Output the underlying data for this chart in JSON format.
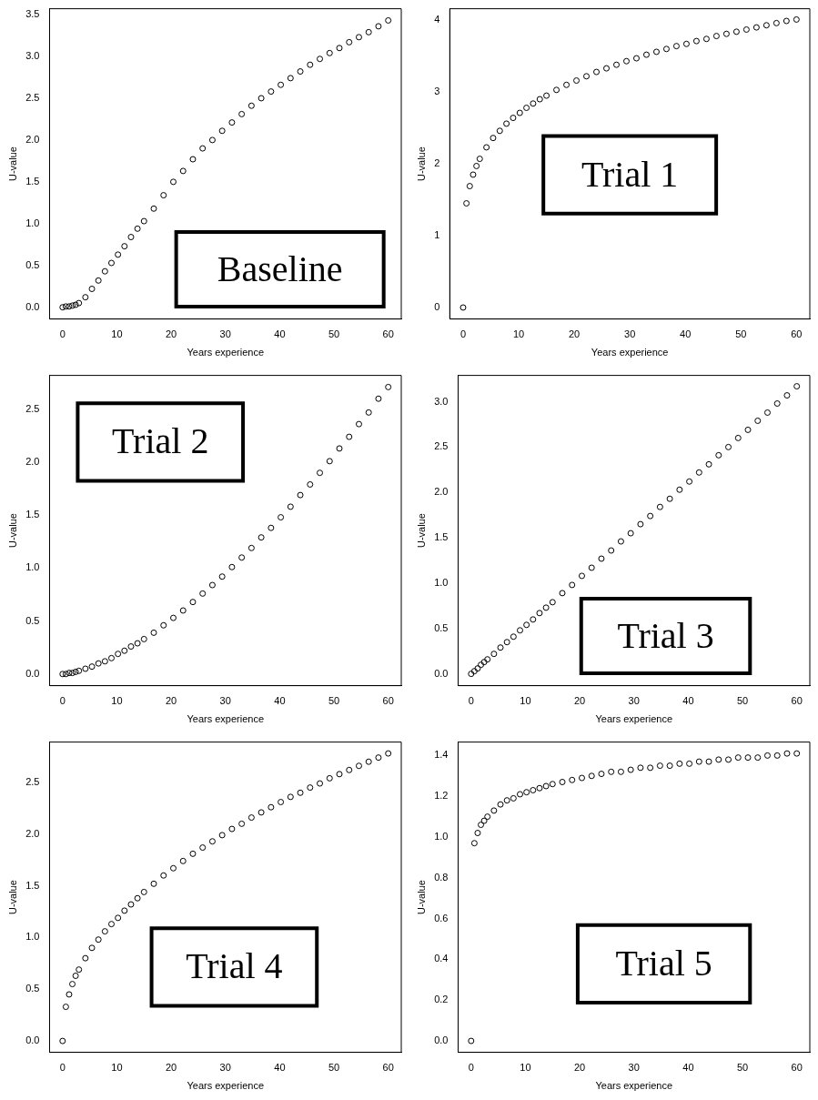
{
  "chart_data": [
    {
      "type": "scatter",
      "annotations": [
        "Baseline"
      ],
      "xlabel": "Years experience",
      "ylabel": "U-value",
      "color": "#000000",
      "marker": "circle",
      "grid": false,
      "x": [
        0,
        0.6,
        1.2,
        1.8,
        2.4,
        3,
        4.2,
        5.4,
        6.6,
        7.8,
        9,
        10.2,
        11.4,
        12.6,
        13.8,
        15,
        16.8,
        18.6,
        20.4,
        22.2,
        24,
        25.8,
        27.6,
        29.4,
        31.2,
        33,
        34.8,
        36.6,
        38.4,
        40.2,
        42,
        43.8,
        45.6,
        47.4,
        49.2,
        51,
        52.8,
        54.6,
        56.4,
        58.2,
        60
      ],
      "values": [
        0,
        0.01,
        0.01,
        0.02,
        0.03,
        0.05,
        0.12,
        0.22,
        0.32,
        0.43,
        0.53,
        0.63,
        0.73,
        0.84,
        0.94,
        1.03,
        1.18,
        1.34,
        1.5,
        1.63,
        1.77,
        1.9,
        2.0,
        2.11,
        2.21,
        2.31,
        2.41,
        2.5,
        2.58,
        2.66,
        2.74,
        2.82,
        2.9,
        2.97,
        3.04,
        3.1,
        3.17,
        3.23,
        3.29,
        3.36,
        3.43
      ],
      "xlim": [
        -2.4,
        62.4
      ],
      "xticks": [
        0,
        10,
        20,
        30,
        40,
        50,
        60
      ],
      "ylim": [
        -0.14,
        3.57
      ],
      "yticks": [
        {
          "value": 0,
          "label": "0.0"
        },
        {
          "value": 0.5,
          "label": "0.5"
        },
        {
          "value": 1,
          "label": "1.0"
        },
        {
          "value": 1.5,
          "label": "1.5"
        },
        {
          "value": 2,
          "label": "2.0"
        },
        {
          "value": 2.5,
          "label": "2.5"
        },
        {
          "value": 3,
          "label": "3.0"
        },
        {
          "value": 3.5,
          "label": "3.5"
        }
      ]
    },
    {
      "type": "scatter",
      "annotations": [
        "Trial 1"
      ],
      "xlabel": "Years experience",
      "ylabel": "U-value",
      "color": "#000000",
      "marker": "circle",
      "grid": false,
      "x": [
        0,
        0.6,
        1.2,
        1.8,
        2.4,
        3,
        4.2,
        5.4,
        6.6,
        7.8,
        9,
        10.2,
        11.4,
        12.6,
        13.8,
        15,
        16.8,
        18.6,
        20.4,
        22.2,
        24,
        25.8,
        27.6,
        29.4,
        31.2,
        33,
        34.8,
        36.6,
        38.4,
        40.2,
        42,
        43.8,
        45.6,
        47.4,
        49.2,
        51,
        52.8,
        54.6,
        56.4,
        58.2,
        60
      ],
      "values": [
        0,
        1.45,
        1.69,
        1.85,
        1.97,
        2.07,
        2.23,
        2.36,
        2.46,
        2.56,
        2.64,
        2.71,
        2.78,
        2.84,
        2.9,
        2.95,
        3.03,
        3.1,
        3.16,
        3.22,
        3.28,
        3.33,
        3.38,
        3.43,
        3.47,
        3.52,
        3.56,
        3.6,
        3.64,
        3.67,
        3.71,
        3.74,
        3.78,
        3.81,
        3.84,
        3.87,
        3.9,
        3.93,
        3.96,
        3.99,
        4.01
      ],
      "xlim": [
        -2.4,
        62.4
      ],
      "xticks": [
        0,
        10,
        20,
        30,
        40,
        50,
        60
      ],
      "ylim": [
        -0.16,
        4.16
      ],
      "yticks": [
        0,
        1,
        2,
        3,
        4
      ]
    },
    {
      "type": "scatter",
      "annotations": [
        "Trial 2"
      ],
      "xlabel": "Years experience",
      "ylabel": "U-value",
      "color": "#000000",
      "marker": "circle",
      "grid": false,
      "x": [
        0,
        0.6,
        1.2,
        1.8,
        2.4,
        3,
        4.2,
        5.4,
        6.6,
        7.8,
        9,
        10.2,
        11.4,
        12.6,
        13.8,
        15,
        16.8,
        18.6,
        20.4,
        22.2,
        24,
        25.8,
        27.6,
        29.4,
        31.2,
        33,
        34.8,
        36.6,
        38.4,
        40.2,
        42,
        43.8,
        45.6,
        47.4,
        49.2,
        51,
        52.8,
        54.6,
        56.4,
        58.2,
        60
      ],
      "values": [
        0,
        0,
        0.01,
        0.01,
        0.02,
        0.03,
        0.05,
        0.07,
        0.1,
        0.12,
        0.15,
        0.19,
        0.22,
        0.26,
        0.29,
        0.33,
        0.39,
        0.46,
        0.53,
        0.6,
        0.68,
        0.76,
        0.84,
        0.92,
        1.01,
        1.1,
        1.19,
        1.29,
        1.38,
        1.48,
        1.58,
        1.69,
        1.79,
        1.9,
        2.01,
        2.13,
        2.24,
        2.36,
        2.47,
        2.6,
        2.71
      ],
      "xlim": [
        -2.4,
        62.4
      ],
      "xticks": [
        0,
        10,
        20,
        30,
        40,
        50,
        60
      ],
      "ylim": [
        -0.11,
        2.82
      ],
      "yticks": [
        {
          "value": 0,
          "label": "0.0"
        },
        {
          "value": 0.5,
          "label": "0.5"
        },
        {
          "value": 1,
          "label": "1.0"
        },
        {
          "value": 1.5,
          "label": "1.5"
        },
        {
          "value": 2,
          "label": "2.0"
        },
        {
          "value": 2.5,
          "label": "2.5"
        }
      ]
    },
    {
      "type": "scatter",
      "annotations": [
        "Trial 3"
      ],
      "xlabel": "Years experience",
      "ylabel": "U-value",
      "color": "#000000",
      "marker": "circle",
      "grid": false,
      "x": [
        0,
        0.6,
        1.2,
        1.8,
        2.4,
        3,
        4.2,
        5.4,
        6.6,
        7.8,
        9,
        10.2,
        11.4,
        12.6,
        13.8,
        15,
        16.8,
        18.6,
        20.4,
        22.2,
        24,
        25.8,
        27.6,
        29.4,
        31.2,
        33,
        34.8,
        36.6,
        38.4,
        40.2,
        42,
        43.8,
        45.6,
        47.4,
        49.2,
        51,
        52.8,
        54.6,
        56.4,
        58.2,
        60
      ],
      "values": [
        0,
        0.03,
        0.06,
        0.1,
        0.13,
        0.16,
        0.22,
        0.29,
        0.35,
        0.41,
        0.48,
        0.54,
        0.6,
        0.67,
        0.73,
        0.79,
        0.89,
        0.98,
        1.08,
        1.17,
        1.27,
        1.36,
        1.46,
        1.55,
        1.65,
        1.74,
        1.84,
        1.93,
        2.03,
        2.12,
        2.22,
        2.31,
        2.41,
        2.5,
        2.6,
        2.69,
        2.79,
        2.88,
        2.98,
        3.07,
        3.17
      ],
      "xlim": [
        -2.4,
        62.4
      ],
      "xticks": [
        0,
        10,
        20,
        30,
        40,
        50,
        60
      ],
      "ylim": [
        -0.13,
        3.29
      ],
      "yticks": [
        {
          "value": 0,
          "label": "0.0"
        },
        {
          "value": 0.5,
          "label": "0.5"
        },
        {
          "value": 1,
          "label": "1.0"
        },
        {
          "value": 1.5,
          "label": "1.5"
        },
        {
          "value": 2,
          "label": "2.0"
        },
        {
          "value": 2.5,
          "label": "2.5"
        },
        {
          "value": 3,
          "label": "3.0"
        }
      ]
    },
    {
      "type": "scatter",
      "annotations": [
        "Trial 4"
      ],
      "xlabel": "Years experience",
      "ylabel": "U-value",
      "color": "#000000",
      "marker": "circle",
      "grid": false,
      "x": [
        0,
        0.6,
        1.2,
        1.8,
        2.4,
        3,
        4.2,
        5.4,
        6.6,
        7.8,
        9,
        10.2,
        11.4,
        12.6,
        13.8,
        15,
        16.8,
        18.6,
        20.4,
        22.2,
        24,
        25.8,
        27.6,
        29.4,
        31.2,
        33,
        34.8,
        36.6,
        38.4,
        40.2,
        42,
        43.8,
        45.6,
        47.4,
        49.2,
        51,
        52.8,
        54.6,
        56.4,
        58.2,
        60
      ],
      "values": [
        0,
        0.33,
        0.45,
        0.55,
        0.63,
        0.69,
        0.8,
        0.9,
        0.98,
        1.06,
        1.13,
        1.19,
        1.26,
        1.32,
        1.38,
        1.44,
        1.52,
        1.6,
        1.67,
        1.74,
        1.81,
        1.87,
        1.93,
        1.99,
        2.05,
        2.1,
        2.16,
        2.21,
        2.26,
        2.31,
        2.36,
        2.4,
        2.45,
        2.49,
        2.54,
        2.58,
        2.62,
        2.66,
        2.7,
        2.74,
        2.78
      ],
      "xlim": [
        -2.4,
        62.4
      ],
      "xticks": [
        0,
        10,
        20,
        30,
        40,
        50,
        60
      ],
      "ylim": [
        -0.11,
        2.89
      ],
      "yticks": [
        {
          "value": 0,
          "label": "0.0"
        },
        {
          "value": 0.5,
          "label": "0.5"
        },
        {
          "value": 1,
          "label": "1.0"
        },
        {
          "value": 1.5,
          "label": "1.5"
        },
        {
          "value": 2,
          "label": "2.0"
        },
        {
          "value": 2.5,
          "label": "2.5"
        }
      ]
    },
    {
      "type": "scatter",
      "annotations": [
        "Trial 5"
      ],
      "xlabel": "Years experience",
      "ylabel": "U-value",
      "color": "#000000",
      "marker": "circle",
      "grid": false,
      "x": [
        0,
        0.6,
        1.2,
        1.8,
        2.4,
        3,
        4.2,
        5.4,
        6.6,
        7.8,
        9,
        10.2,
        11.4,
        12.6,
        13.8,
        15,
        16.8,
        18.6,
        20.4,
        22.2,
        24,
        25.8,
        27.6,
        29.4,
        31.2,
        33,
        34.8,
        36.6,
        38.4,
        40.2,
        42,
        43.8,
        45.6,
        47.4,
        49.2,
        51,
        52.8,
        54.6,
        56.4,
        58.2,
        60
      ],
      "values": [
        0,
        0.97,
        1.02,
        1.06,
        1.08,
        1.1,
        1.13,
        1.16,
        1.18,
        1.19,
        1.21,
        1.22,
        1.23,
        1.24,
        1.25,
        1.26,
        1.27,
        1.28,
        1.29,
        1.3,
        1.31,
        1.32,
        1.32,
        1.33,
        1.34,
        1.34,
        1.35,
        1.35,
        1.36,
        1.36,
        1.37,
        1.37,
        1.38,
        1.38,
        1.39,
        1.39,
        1.39,
        1.4,
        1.4,
        1.41,
        1.41
      ],
      "xlim": [
        -2.4,
        62.4
      ],
      "xticks": [
        0,
        10,
        20,
        30,
        40,
        50,
        60
      ],
      "ylim": [
        -0.056,
        1.466
      ],
      "yticks": [
        {
          "value": 0,
          "label": "0.0"
        },
        {
          "value": 0.2,
          "label": "0.2"
        },
        {
          "value": 0.4,
          "label": "0.4"
        },
        {
          "value": 0.6,
          "label": "0.6"
        },
        {
          "value": 0.8,
          "label": "0.8"
        },
        {
          "value": 1,
          "label": "1.0"
        },
        {
          "value": 1.2,
          "label": "1.2"
        },
        {
          "value": 1.4,
          "label": "1.4"
        }
      ]
    }
  ]
}
